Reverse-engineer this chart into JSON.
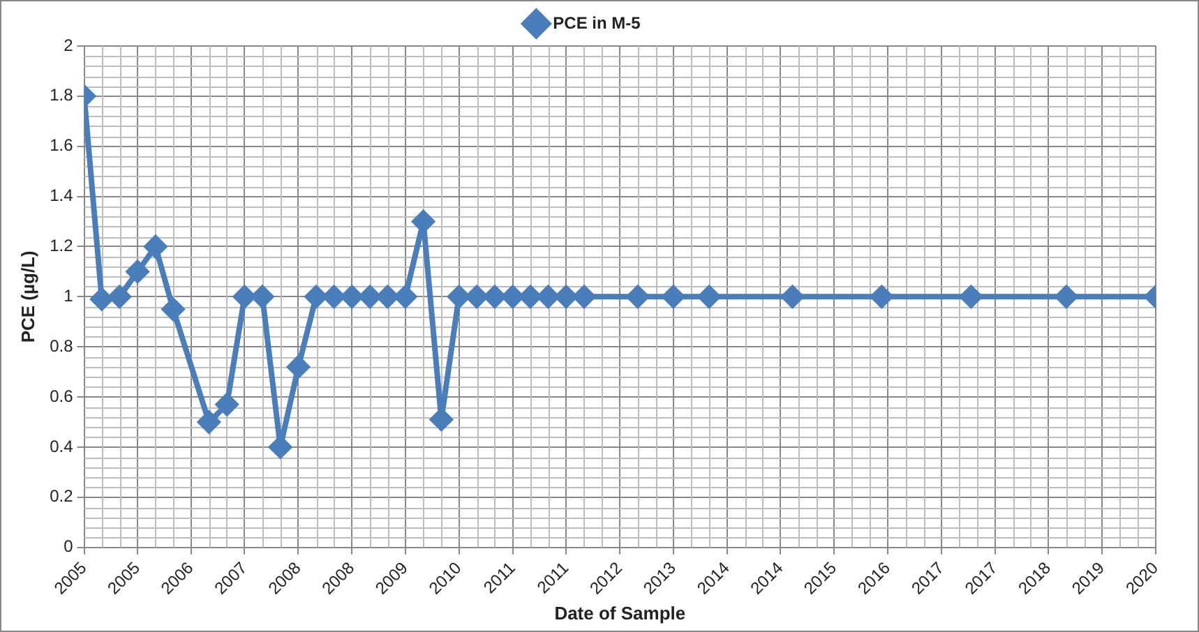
{
  "chart_data": {
    "type": "line",
    "xlabel": "Date of Sample",
    "ylabel": "PCE (µg/L)",
    "x": [
      "2005-01",
      "2005-04",
      "2005-07",
      "2005-10",
      "2006-01",
      "2006-04",
      "2006-10",
      "2007-01",
      "2007-04",
      "2007-07",
      "2007-10",
      "2008-01",
      "2008-04",
      "2008-07",
      "2008-10",
      "2009-01",
      "2009-04",
      "2009-07",
      "2009-10",
      "2010-01",
      "2010-04",
      "2010-07",
      "2010-10",
      "2011-01",
      "2011-04",
      "2011-07",
      "2011-10",
      "2012-01",
      "2012-10",
      "2013-04",
      "2013-10",
      "2014-12",
      "2016-03",
      "2017-06",
      "2018-10",
      "2020-01"
    ],
    "series": [
      {
        "name": "PCE in M-5",
        "color": "#4a7ebb",
        "values": [
          1.8,
          0.99,
          1,
          1.1,
          1.2,
          0.95,
          0.5,
          0.57,
          1,
          1,
          0.4,
          0.72,
          1,
          1,
          1,
          1,
          1,
          1,
          1.3,
          0.51,
          1,
          1,
          1,
          1,
          1,
          1,
          1,
          1,
          1,
          1,
          1,
          1,
          1,
          1,
          1,
          1
        ]
      }
    ],
    "xlim": [
      "2005-01",
      "2020-01"
    ],
    "xticks": [
      {
        "value": "2005-01",
        "label": "2005"
      },
      {
        "value": "2005-10",
        "label": "2005"
      },
      {
        "value": "2006-07",
        "label": "2006"
      },
      {
        "value": "2007-04",
        "label": "2007"
      },
      {
        "value": "2008-01",
        "label": "2008"
      },
      {
        "value": "2008-10",
        "label": "2008"
      },
      {
        "value": "2009-07",
        "label": "2009"
      },
      {
        "value": "2010-04",
        "label": "2010"
      },
      {
        "value": "2011-01",
        "label": "2011"
      },
      {
        "value": "2011-10",
        "label": "2011"
      },
      {
        "value": "2012-07",
        "label": "2012"
      },
      {
        "value": "2013-04",
        "label": "2013"
      },
      {
        "value": "2014-01",
        "label": "2014"
      },
      {
        "value": "2014-10",
        "label": "2014"
      },
      {
        "value": "2015-07",
        "label": "2015"
      },
      {
        "value": "2016-04",
        "label": "2016"
      },
      {
        "value": "2017-01",
        "label": "2017"
      },
      {
        "value": "2017-10",
        "label": "2017"
      },
      {
        "value": "2018-07",
        "label": "2018"
      },
      {
        "value": "2019-04",
        "label": "2019"
      },
      {
        "value": "2020-01",
        "label": "2020"
      }
    ],
    "ylim": [
      0,
      2
    ],
    "yticks": [
      0,
      0.2,
      0.4,
      0.6,
      0.8,
      1,
      1.2,
      1.4,
      1.6,
      1.8,
      2
    ],
    "grid": true,
    "legend": "top",
    "marker": "diamond",
    "line_style": "solid"
  }
}
